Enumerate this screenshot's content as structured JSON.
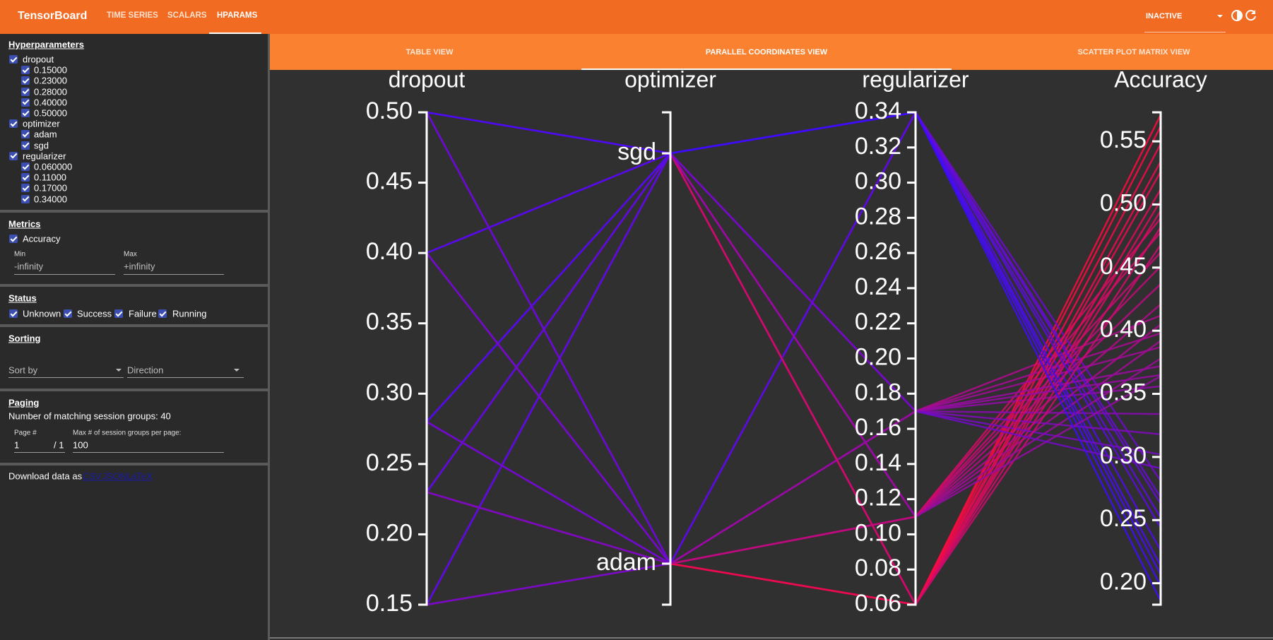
{
  "header": {
    "title": "TensorBoard",
    "nav": [
      "TIME SERIES",
      "SCALARS",
      "HPARAMS"
    ],
    "run_status": "INACTIVE"
  },
  "tabs": [
    "TABLE VIEW",
    "PARALLEL COORDINATES VIEW",
    "SCATTER PLOT MATRIX VIEW"
  ],
  "sidebar": {
    "hyperparameters": {
      "title": "Hyperparameters",
      "groups": [
        {
          "name": "dropout",
          "values": [
            "0.15000",
            "0.23000",
            "0.28000",
            "0.40000",
            "0.50000"
          ]
        },
        {
          "name": "optimizer",
          "values": [
            "adam",
            "sgd"
          ]
        },
        {
          "name": "regularizer",
          "values": [
            "0.060000",
            "0.11000",
            "0.17000",
            "0.34000"
          ]
        }
      ]
    },
    "metrics": {
      "title": "Metrics",
      "name": "Accuracy",
      "min_label": "Min",
      "min_value": "-infinity",
      "max_label": "Max",
      "max_value": "+infinity"
    },
    "status": {
      "title": "Status",
      "options": [
        "Unknown",
        "Success",
        "Failure",
        "Running"
      ]
    },
    "sorting": {
      "title": "Sorting",
      "sort_by": "Sort by",
      "direction": "Direction"
    },
    "paging": {
      "title": "Paging",
      "matching": "Number of matching session groups: 40",
      "page_label": "Page #",
      "page": "1",
      "page_total": "/ 1",
      "size_label": "Max # of session groups per page:",
      "size": "100"
    },
    "download": {
      "text": "Download data as",
      "links": [
        "CSV",
        "JSON",
        "LaTeX"
      ]
    }
  },
  "chart_data": {
    "type": "parallel_coordinates",
    "colors": [
      "#3d0cff",
      "#ff0a3c"
    ],
    "axes": [
      {
        "name": "dropout",
        "ylim": [
          0.15,
          0.5
        ],
        "yticks": [
          0.15,
          {
            "value": 0.2,
            "label": "0.20"
          },
          0.25,
          {
            "value": 0.3,
            "label": "0.30"
          },
          0.35,
          {
            "value": 0.4,
            "label": "0.40"
          },
          0.45,
          {
            "value": 0.5,
            "label": "0.50"
          }
        ]
      },
      {
        "name": "optimizer",
        "categories": [
          "sgd",
          "adam"
        ]
      },
      {
        "name": "regularizer",
        "ylim": [
          0.06,
          0.34
        ],
        "yticks": [
          0.06,
          0.08,
          {
            "value": 0.1,
            "label": "0.10"
          },
          0.12,
          0.14,
          0.16,
          0.18,
          {
            "value": 0.2,
            "label": "0.20"
          },
          0.22,
          0.24,
          0.26,
          0.28,
          {
            "value": 0.3,
            "label": "0.30"
          },
          0.32,
          0.34
        ]
      },
      {
        "name": "Accuracy",
        "ylim": [
          0.183,
          0.573
        ],
        "yticks": [
          {
            "value": 0.2,
            "label": "0.20"
          },
          0.25,
          {
            "value": 0.3,
            "label": "0.30"
          },
          0.35,
          {
            "value": 0.4,
            "label": "0.40"
          },
          0.45,
          {
            "value": 0.5,
            "label": "0.50"
          },
          0.55
        ]
      }
    ],
    "sessions": {
      "dropout": [
        0.15,
        0.15,
        0.15,
        0.15,
        0.15,
        0.15,
        0.15,
        0.15,
        0.23,
        0.23,
        0.23,
        0.23,
        0.23,
        0.23,
        0.23,
        0.23,
        0.28,
        0.28,
        0.28,
        0.28,
        0.28,
        0.28,
        0.28,
        0.28,
        0.4,
        0.4,
        0.4,
        0.4,
        0.4,
        0.4,
        0.4,
        0.4,
        0.5,
        0.5,
        0.5,
        0.5,
        0.5,
        0.5,
        0.5,
        0.5
      ],
      "optimizer": [
        "adam",
        "adam",
        "adam",
        "adam",
        "sgd",
        "sgd",
        "sgd",
        "sgd",
        "adam",
        "adam",
        "adam",
        "adam",
        "sgd",
        "sgd",
        "sgd",
        "sgd",
        "adam",
        "adam",
        "adam",
        "adam",
        "sgd",
        "sgd",
        "sgd",
        "sgd",
        "adam",
        "adam",
        "adam",
        "adam",
        "sgd",
        "sgd",
        "sgd",
        "sgd",
        "adam",
        "adam",
        "adam",
        "adam",
        "sgd",
        "sgd",
        "sgd",
        "sgd"
      ],
      "regularizer": [
        0.06,
        0.11,
        0.17,
        0.34,
        0.06,
        0.11,
        0.17,
        0.34,
        0.06,
        0.11,
        0.17,
        0.34,
        0.06,
        0.11,
        0.17,
        0.34,
        0.06,
        0.11,
        0.17,
        0.34,
        0.06,
        0.11,
        0.17,
        0.34,
        0.06,
        0.11,
        0.17,
        0.34,
        0.06,
        0.11,
        0.17,
        0.34,
        0.06,
        0.11,
        0.17,
        0.34,
        0.06,
        0.11,
        0.17,
        0.34
      ],
      "Accuracy": [
        0.562,
        0.478,
        0.412,
        0.268,
        0.512,
        0.421,
        0.356,
        0.214,
        0.571,
        0.489,
        0.398,
        0.281,
        0.503,
        0.392,
        0.334,
        0.226,
        0.548,
        0.462,
        0.387,
        0.252,
        0.495,
        0.405,
        0.318,
        0.198,
        0.534,
        0.451,
        0.372,
        0.263,
        0.482,
        0.378,
        0.302,
        0.207,
        0.526,
        0.437,
        0.365,
        0.244,
        0.468,
        0.364,
        0.291,
        0.186
      ]
    }
  }
}
